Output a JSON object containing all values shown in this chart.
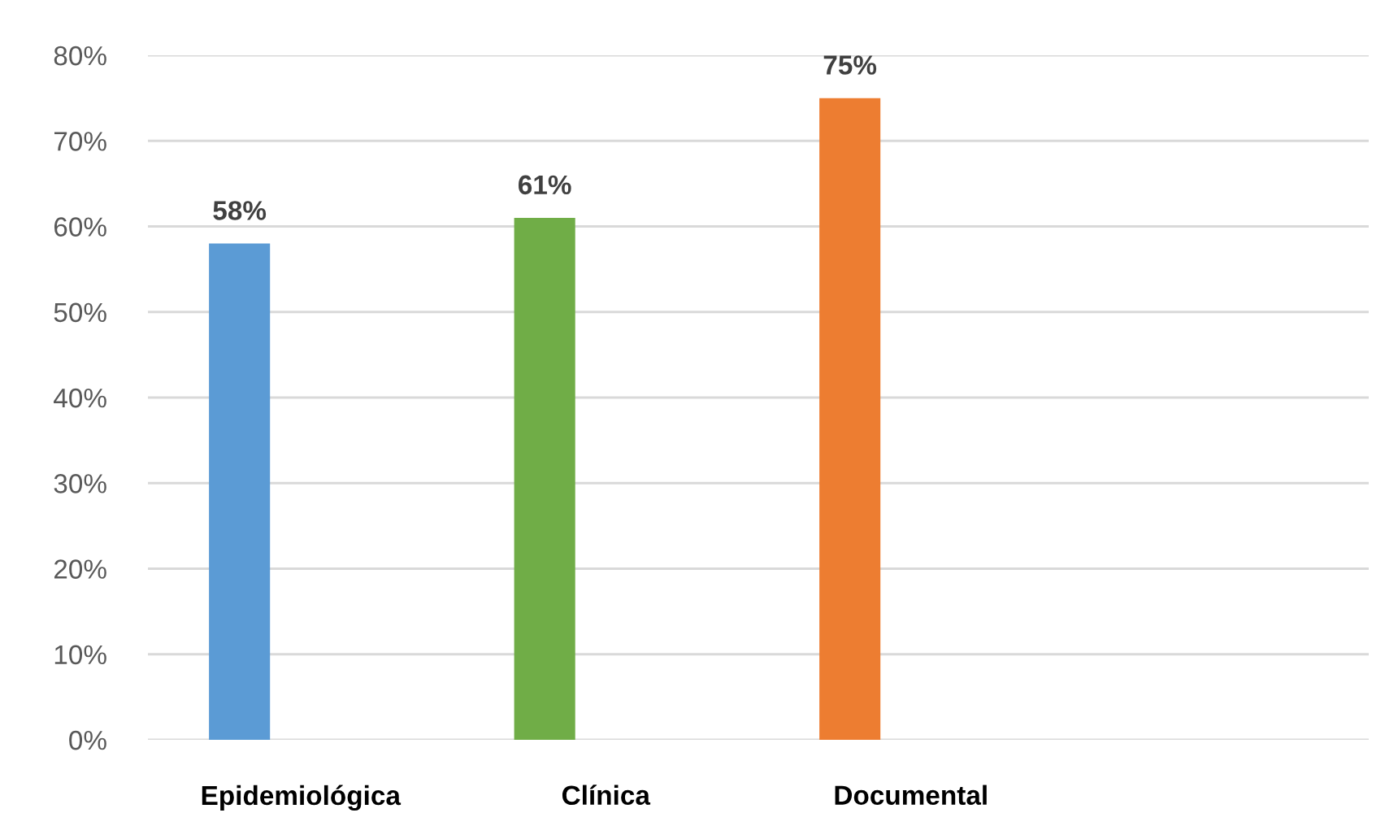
{
  "chart_data": {
    "type": "bar",
    "categories": [
      "Epidemiológica",
      "Clínica",
      "Documental",
      null
    ],
    "values": [
      58,
      61,
      75,
      null
    ],
    "colors": [
      "#5b9bd5",
      "#70ad47",
      "#ed7d31",
      null
    ],
    "value_labels": [
      "58%",
      "61%",
      "75%",
      null
    ],
    "ylim": [
      0,
      80
    ],
    "yticks": [
      {
        "value": 0,
        "label": "0%"
      },
      {
        "value": 10,
        "label": "10%"
      },
      {
        "value": 20,
        "label": "20%"
      },
      {
        "value": 30,
        "label": "30%"
      },
      {
        "value": 40,
        "label": "40%"
      },
      {
        "value": 50,
        "label": "50%"
      },
      {
        "value": 60,
        "label": "60%"
      },
      {
        "value": 70,
        "label": "70%"
      },
      {
        "value": 80,
        "label": "80%"
      }
    ],
    "grid": "y"
  }
}
